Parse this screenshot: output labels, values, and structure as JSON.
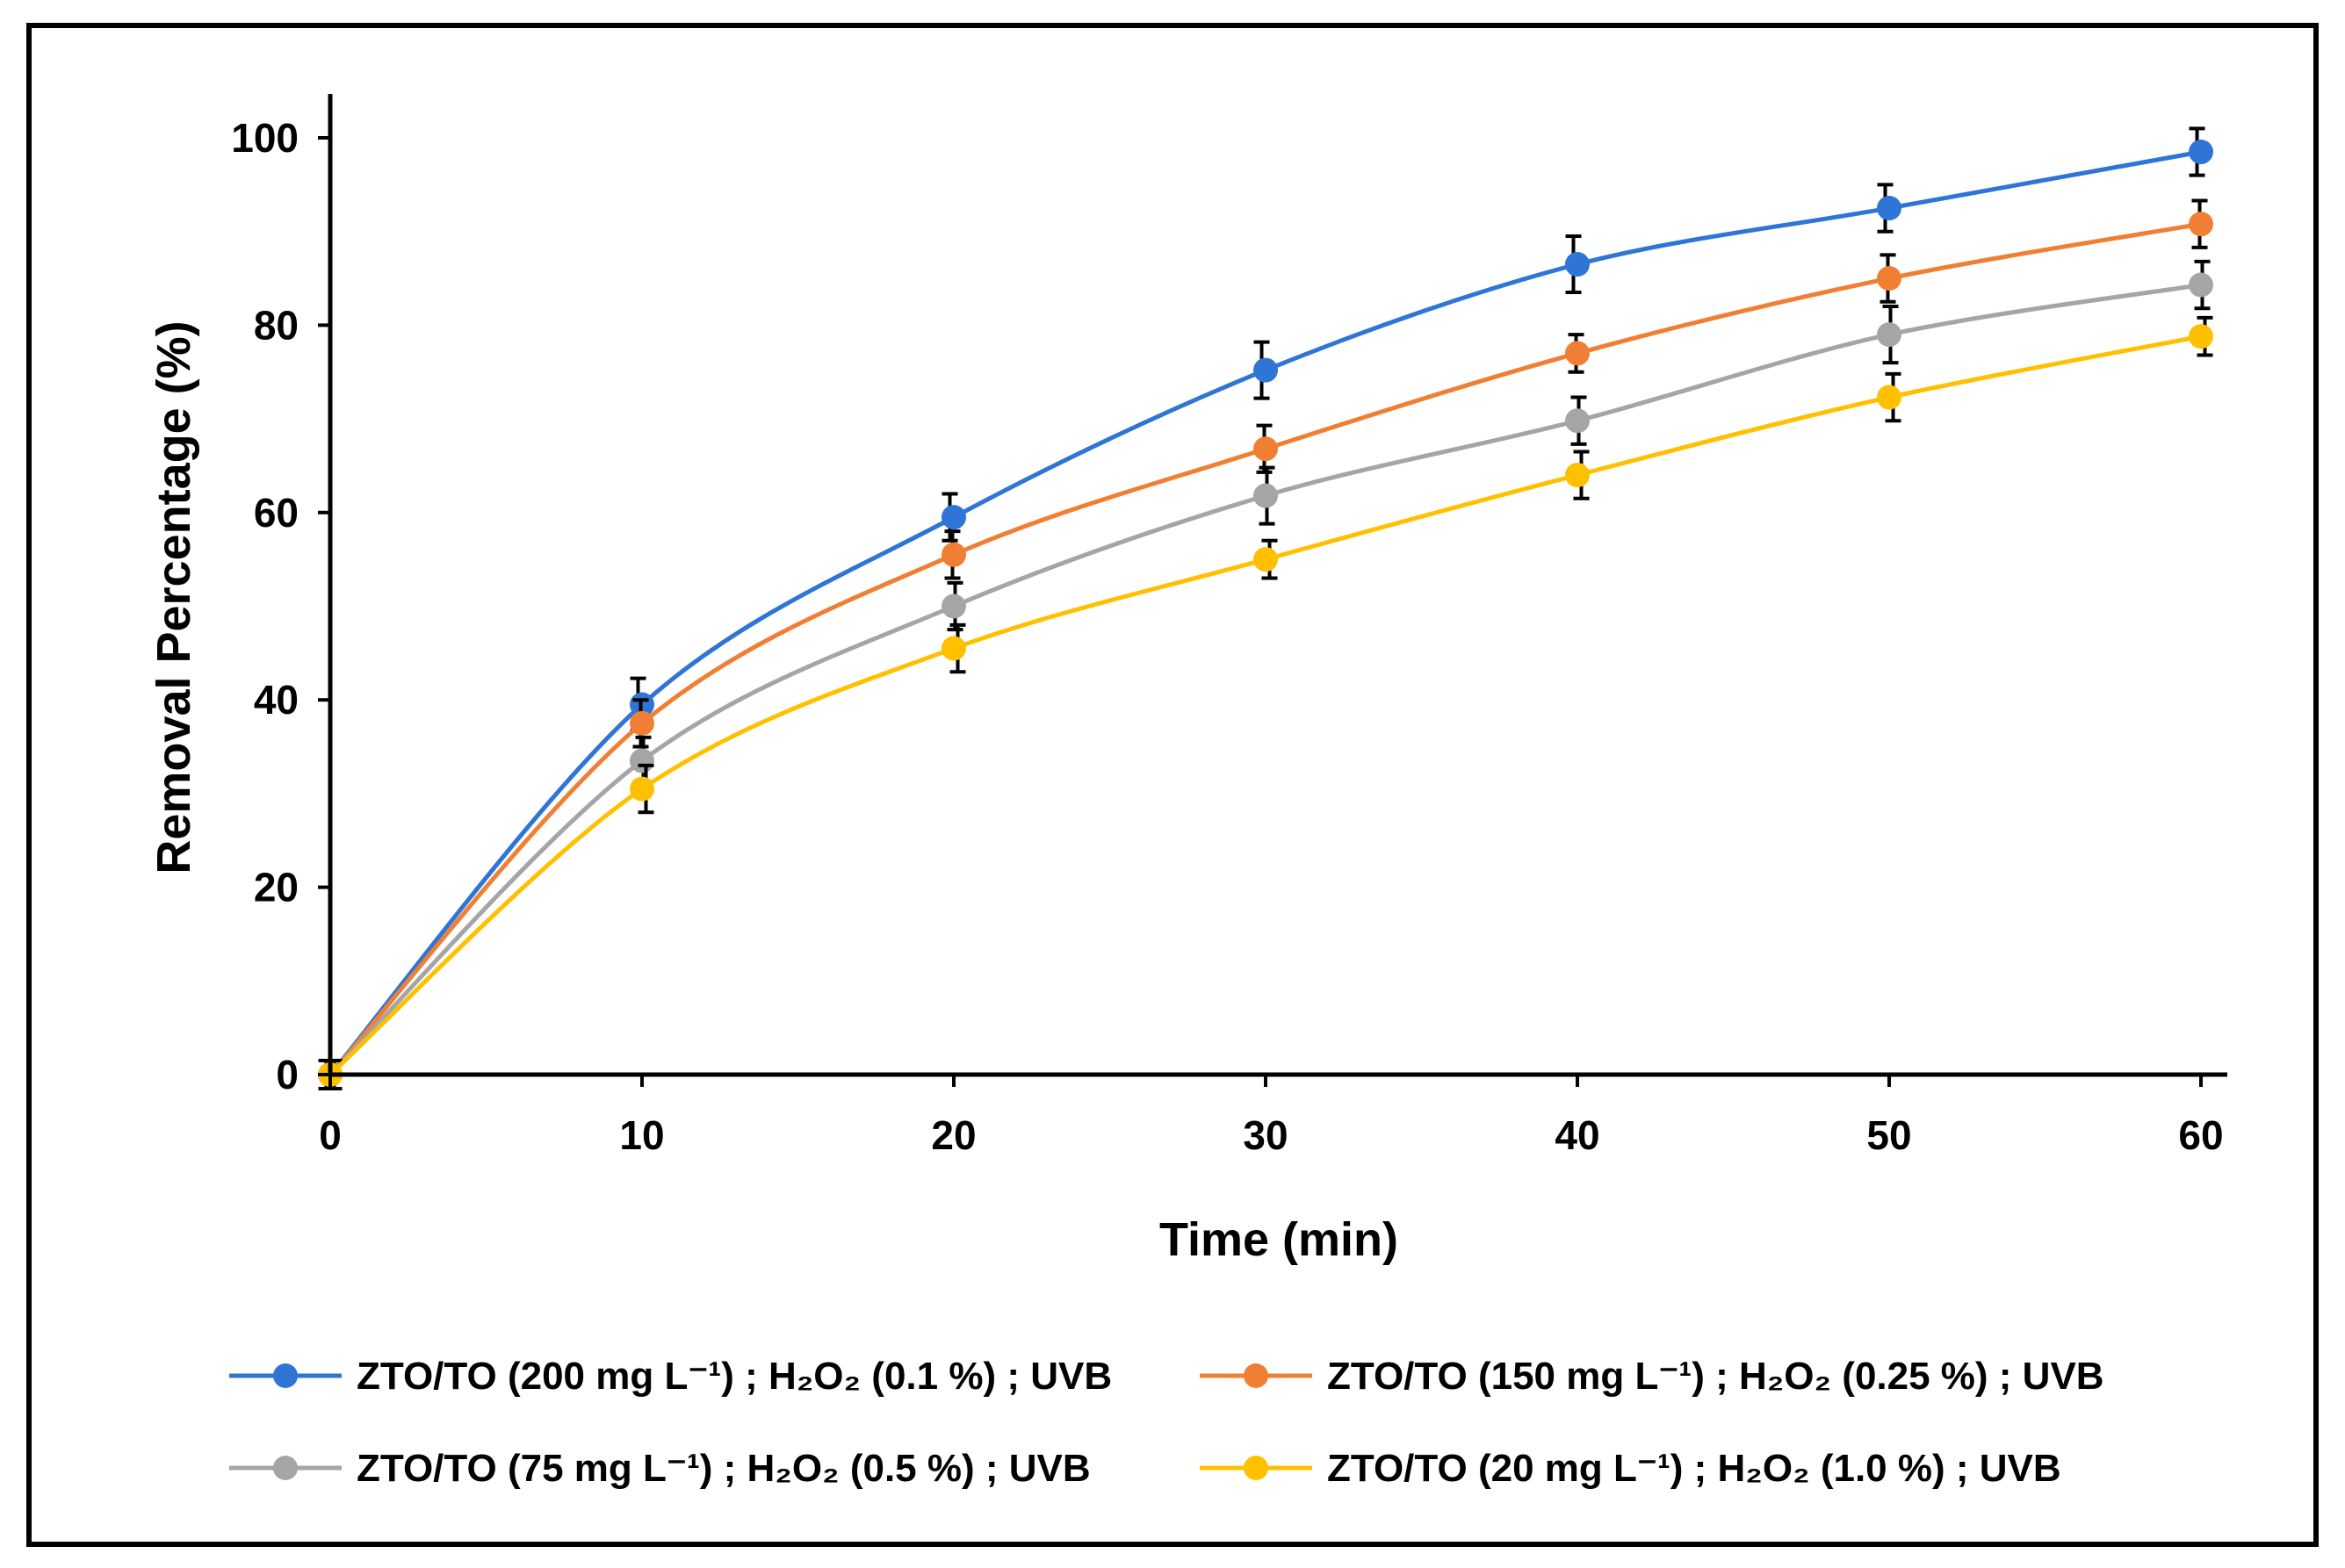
{
  "chart_data": {
    "type": "line",
    "title": "",
    "xlabel": "Time (min)",
    "ylabel": "Removal Percentage (%)",
    "x": [
      0,
      10,
      20,
      30,
      40,
      50,
      60
    ],
    "xticks": [
      "0",
      "10",
      "20",
      "30",
      "40",
      "50",
      "60"
    ],
    "yticks": [
      "0",
      "20",
      "40",
      "60",
      "80",
      "100"
    ],
    "xlim": [
      0,
      60
    ],
    "ylim": [
      0,
      100
    ],
    "grid": false,
    "legend_position": "bottom",
    "series": [
      {
        "name": "ZTO/TO (200 mg L⁻¹) ; H₂O₂ (0.1 %) ; UVB",
        "color": "#2e75d6",
        "values": [
          0,
          39.5,
          59.5,
          75.2,
          86.5,
          92.5,
          98.5
        ],
        "errors": [
          1.5,
          2.8,
          2.5,
          3.0,
          3.0,
          2.5,
          2.5
        ]
      },
      {
        "name": "ZTO/TO (150 mg L⁻¹) ; H₂O₂ (0.25 %) ; UVB",
        "color": "#f07f33",
        "values": [
          0,
          37.5,
          55.5,
          66.8,
          77.0,
          85.0,
          90.8
        ],
        "errors": [
          1.5,
          2.5,
          2.5,
          2.5,
          2.0,
          2.5,
          2.5
        ]
      },
      {
        "name": "ZTO/TO (75 mg L⁻¹) ; H₂O₂ (0.5 %) ; UVB",
        "color": "#a5a5a5",
        "values": [
          0,
          33.5,
          50.0,
          61.8,
          69.8,
          79.0,
          84.3
        ],
        "errors": [
          1.5,
          2.5,
          2.5,
          3.0,
          2.5,
          3.0,
          2.5
        ]
      },
      {
        "name": "ZTO/TO (20 mg L⁻¹) ; H₂O₂ (1.0 %) ; UVB",
        "color": "#ffc000",
        "values": [
          0,
          30.5,
          45.5,
          55.0,
          64.0,
          72.3,
          78.8
        ],
        "errors": [
          1.5,
          2.5,
          2.5,
          2.0,
          2.5,
          2.5,
          2.0
        ]
      }
    ]
  }
}
